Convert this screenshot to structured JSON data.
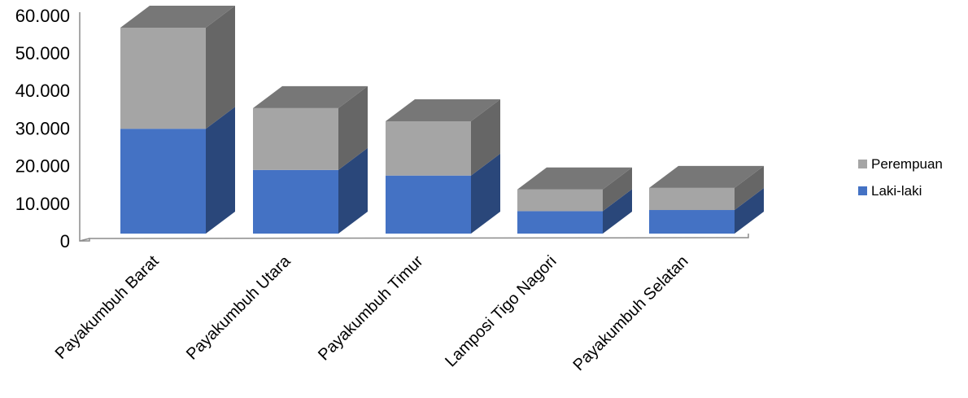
{
  "chart_data": {
    "type": "bar",
    "stacked": true,
    "three_d": true,
    "categories": [
      "Payakumbuh Barat",
      "Payakumbuh Utara",
      "Payakumbuh Timur",
      "Lamposi Tigo Nagori",
      "Payakumbuh Selatan"
    ],
    "series": [
      {
        "name": "Laki-laki",
        "values": [
          28000,
          17000,
          15500,
          6000,
          6300
        ],
        "color": "#4472C4"
      },
      {
        "name": "Perempuan",
        "values": [
          27000,
          16500,
          14500,
          5800,
          5900
        ],
        "color": "#A5A5A5"
      }
    ],
    "yticks": [
      "0",
      "10.000",
      "20.000",
      "30.000",
      "40.000",
      "50.000",
      "60.000"
    ],
    "ylim": [
      0,
      60000
    ],
    "legend": {
      "position": "right",
      "order": [
        "Perempuan",
        "Laki-laki"
      ]
    },
    "grid": false
  }
}
